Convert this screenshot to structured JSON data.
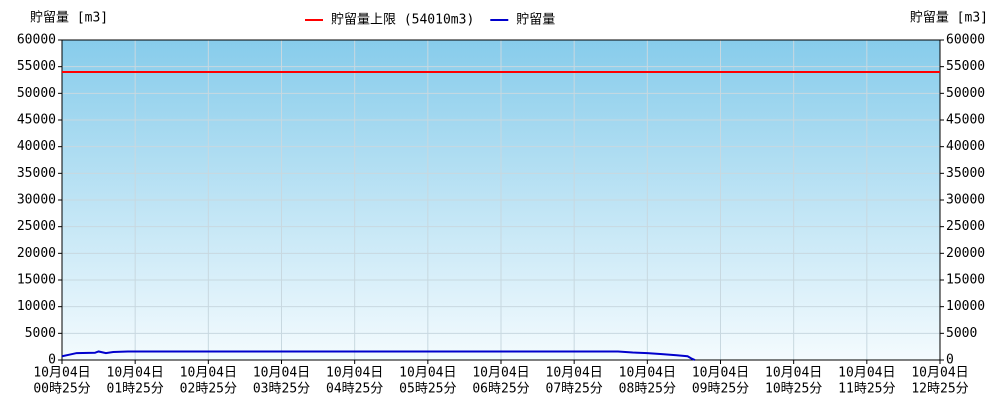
{
  "chart_data": {
    "type": "line",
    "ylabel": "貯留量 [m3]",
    "y2label": "貯留量 [m3]",
    "limit": {
      "name": "貯留量上限 (54010m3)",
      "value": 54010,
      "color": "#ff0000"
    },
    "x": [
      0,
      0.1,
      0.2,
      0.45,
      0.5,
      0.6,
      0.7,
      0.9,
      7.6,
      7.8,
      8.0,
      8.2,
      8.4,
      8.55,
      8.6,
      8.65
    ],
    "series": [
      {
        "name": "貯留量",
        "color": "#0000cc",
        "values": [
          700,
          1000,
          1300,
          1350,
          1600,
          1300,
          1500,
          1600,
          1600,
          1400,
          1300,
          1100,
          900,
          700,
          300,
          0
        ]
      }
    ],
    "xlim": [
      0,
      12
    ],
    "xticks": [
      {
        "value": 0,
        "label": [
          "10月04日",
          "00時25分"
        ]
      },
      {
        "value": 1,
        "label": [
          "10月04日",
          "01時25分"
        ]
      },
      {
        "value": 2,
        "label": [
          "10月04日",
          "02時25分"
        ]
      },
      {
        "value": 3,
        "label": [
          "10月04日",
          "03時25分"
        ]
      },
      {
        "value": 4,
        "label": [
          "10月04日",
          "04時25分"
        ]
      },
      {
        "value": 5,
        "label": [
          "10月04日",
          "05時25分"
        ]
      },
      {
        "value": 6,
        "label": [
          "10月04日",
          "06時25分"
        ]
      },
      {
        "value": 7,
        "label": [
          "10月04日",
          "07時25分"
        ]
      },
      {
        "value": 8,
        "label": [
          "10月04日",
          "08時25分"
        ]
      },
      {
        "value": 9,
        "label": [
          "10月04日",
          "09時25分"
        ]
      },
      {
        "value": 10,
        "label": [
          "10月04日",
          "10時25分"
        ]
      },
      {
        "value": 11,
        "label": [
          "10月04日",
          "11時25分"
        ]
      },
      {
        "value": 12,
        "label": [
          "10月04日",
          "12時25分"
        ]
      }
    ],
    "ylim": [
      0,
      60000
    ],
    "yticks": [
      0,
      5000,
      10000,
      15000,
      20000,
      25000,
      30000,
      35000,
      40000,
      45000,
      50000,
      55000,
      60000
    ],
    "y2lim": [
      0,
      60000
    ],
    "y2ticks": [
      0,
      5000,
      10000,
      15000,
      20000,
      25000,
      30000,
      35000,
      40000,
      45000,
      50000,
      55000,
      60000
    ],
    "grid": true
  }
}
